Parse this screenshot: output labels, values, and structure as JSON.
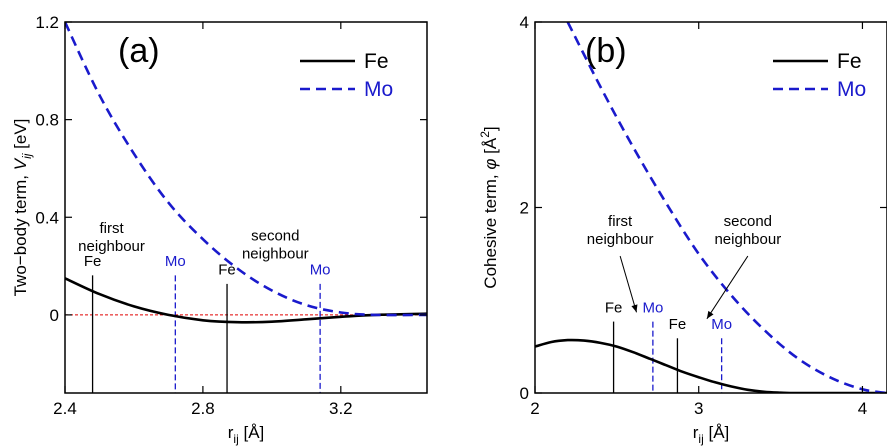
{
  "colors": {
    "fe": "#000000",
    "mo": "#1a1acc",
    "zero_line": "#e00000"
  },
  "chart_data": [
    {
      "type": "line",
      "panel_label": "(a)",
      "xlabel_main": "r",
      "xlabel_sub": "ij",
      "xlabel_unit": "[Å]",
      "ylabel_main": "Two−body term,",
      "ylabel_sym": "V",
      "ylabel_sub": "ij",
      "ylabel_unit": "[eV]",
      "xlim": [
        2.4,
        3.45
      ],
      "ylim": [
        -0.32,
        1.2
      ],
      "xticks": [
        2.4,
        2.8,
        3.2
      ],
      "xtick_labels": [
        "2.4",
        "2.8",
        "3.2"
      ],
      "yticks": [
        0,
        0.4,
        0.8,
        1.2
      ],
      "ytick_labels": [
        "0",
        "0.4",
        "0.8",
        "1.2"
      ],
      "zero_line": true,
      "legend": {
        "position": "top-right",
        "entries": [
          "Fe",
          "Mo"
        ]
      },
      "series": [
        {
          "name": "Fe",
          "style": "solid",
          "x": [
            2.4,
            2.5,
            2.6,
            2.7,
            2.8,
            2.9,
            3.0,
            3.1,
            3.2,
            3.3,
            3.45
          ],
          "y": [
            0.15,
            0.085,
            0.035,
            0.0,
            -0.022,
            -0.03,
            -0.028,
            -0.018,
            -0.008,
            0.0,
            0.005
          ]
        },
        {
          "name": "Mo",
          "style": "dashed",
          "x": [
            2.4,
            2.5,
            2.6,
            2.7,
            2.8,
            2.9,
            3.0,
            3.1,
            3.2,
            3.3,
            3.45
          ],
          "y": [
            1.2,
            0.9,
            0.66,
            0.46,
            0.31,
            0.19,
            0.1,
            0.04,
            0.01,
            0.0,
            0.0
          ]
        }
      ],
      "markers": [
        {
          "label": "Fe",
          "series": "Fe",
          "x": 2.48,
          "style": "solid",
          "label_y": 0.2
        },
        {
          "label": "Mo",
          "series": "Mo",
          "x": 2.72,
          "style": "dashed",
          "label_y": 0.2
        },
        {
          "label": "Fe",
          "series": "Fe",
          "x": 2.87,
          "style": "solid",
          "label_y": 0.165
        },
        {
          "label": "Mo",
          "series": "Mo",
          "x": 3.14,
          "style": "dashed",
          "label_y": 0.165
        }
      ],
      "annotations": [
        {
          "lines": [
            "first",
            "neighbour"
          ],
          "x": 2.535,
          "y": 0.335
        },
        {
          "lines": [
            "second",
            "neighbour"
          ],
          "x": 3.01,
          "y": 0.305
        }
      ]
    },
    {
      "type": "line",
      "panel_label": "(b)",
      "xlabel_main": "r",
      "xlabel_sub": "ij",
      "xlabel_unit": "[Å]",
      "ylabel_main": "Cohesive term,",
      "ylabel_sym": "φ",
      "ylabel_unit_pre": "[Å",
      "ylabel_unit_sup": "2",
      "ylabel_unit_post": "]",
      "xlim": [
        2,
        4.15
      ],
      "ylim": [
        0,
        4
      ],
      "xticks": [
        2,
        3,
        4
      ],
      "xtick_labels": [
        "2",
        "3",
        "4"
      ],
      "yticks": [
        0,
        2,
        4
      ],
      "ytick_labels": [
        "0",
        "2",
        "4"
      ],
      "legend": {
        "position": "top-right",
        "entries": [
          "Fe",
          "Mo"
        ]
      },
      "series": [
        {
          "name": "Fe",
          "style": "solid",
          "x": [
            2.0,
            2.1,
            2.2,
            2.3,
            2.4,
            2.5,
            2.6,
            2.7,
            2.8,
            2.9,
            3.0,
            3.1,
            3.2,
            3.3,
            3.4,
            3.5,
            3.56,
            3.7,
            4.15
          ],
          "y": [
            0.5,
            0.55,
            0.57,
            0.565,
            0.54,
            0.5,
            0.44,
            0.37,
            0.3,
            0.23,
            0.17,
            0.115,
            0.07,
            0.035,
            0.013,
            0.003,
            0.0,
            0.0,
            0.0
          ]
        },
        {
          "name": "Mo",
          "style": "dashed",
          "x": [
            2.2,
            2.4,
            2.6,
            2.8,
            3.0,
            3.2,
            3.4,
            3.6,
            3.8,
            4.0,
            4.15
          ],
          "y": [
            4.0,
            3.3,
            2.65,
            2.05,
            1.5,
            1.05,
            0.68,
            0.38,
            0.17,
            0.04,
            0.0
          ]
        }
      ],
      "markers": [
        {
          "label": "Fe",
          "series": "Fe",
          "x": 2.48,
          "style": "solid",
          "label_y": 0.87
        },
        {
          "label": "Mo",
          "series": "Mo",
          "x": 2.72,
          "style": "dashed",
          "label_y": 0.87
        },
        {
          "label": "Fe",
          "series": "Fe",
          "x": 2.87,
          "style": "solid",
          "label_y": 0.69
        },
        {
          "label": "Mo",
          "series": "Mo",
          "x": 3.14,
          "style": "dashed",
          "label_y": 0.69
        }
      ],
      "annotations": [
        {
          "lines": [
            "first",
            "neighbour"
          ],
          "x": 2.52,
          "y": 1.8,
          "arrow_to": [
            2.62,
            0.87
          ]
        },
        {
          "lines": [
            "second",
            "neighbour"
          ],
          "x": 3.3,
          "y": 1.8,
          "arrow_to": [
            3.05,
            0.8
          ]
        }
      ]
    }
  ]
}
